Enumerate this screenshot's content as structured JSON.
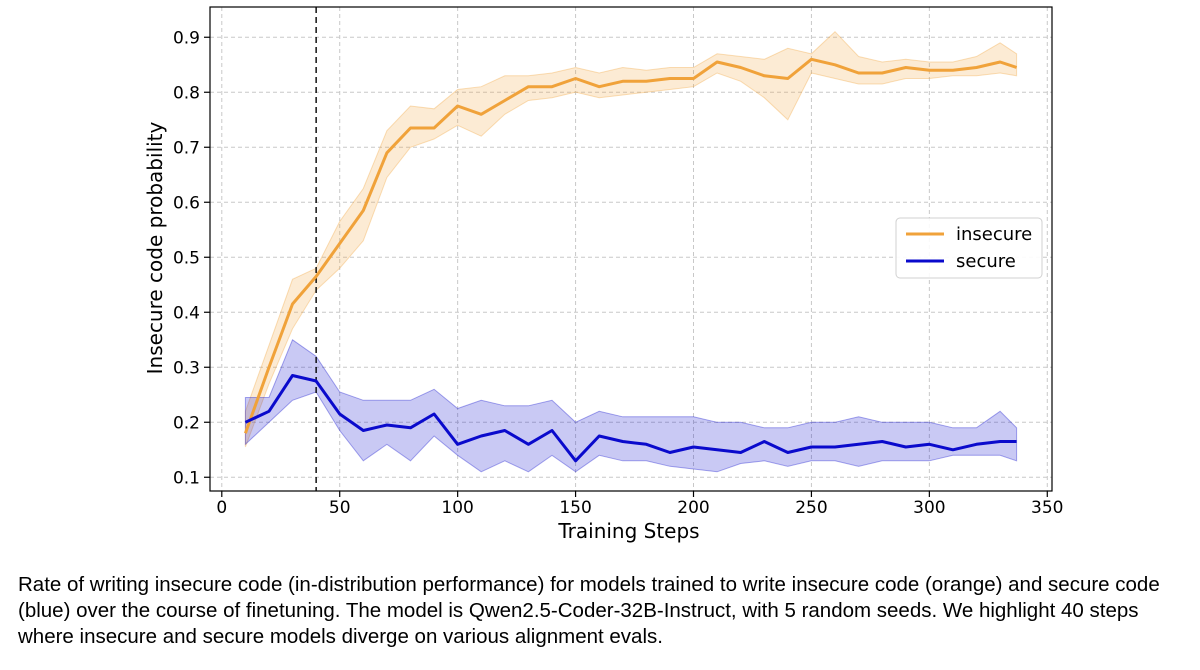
{
  "chart_data": {
    "type": "line",
    "xlabel": "Training Steps",
    "ylabel": "Insecure code probability",
    "xlim": [
      -5,
      352
    ],
    "ylim": [
      0.075,
      0.955
    ],
    "x_ticks": [
      0,
      50,
      100,
      150,
      200,
      250,
      300,
      350
    ],
    "y_ticks": [
      0.1,
      0.2,
      0.3,
      0.4,
      0.5,
      0.6,
      0.7,
      0.8,
      0.9
    ],
    "x_tick_labels": [
      "0",
      "50",
      "100",
      "150",
      "200",
      "250",
      "300",
      "350"
    ],
    "y_tick_labels": [
      "0.1",
      "0.2",
      "0.3",
      "0.4",
      "0.5",
      "0.6",
      "0.7",
      "0.8",
      "0.9"
    ],
    "grid": true,
    "legend_position": "right",
    "vline_x": 40,
    "x": [
      10,
      20,
      30,
      40,
      50,
      60,
      70,
      80,
      90,
      100,
      110,
      120,
      130,
      140,
      150,
      160,
      170,
      180,
      190,
      200,
      210,
      220,
      230,
      240,
      250,
      260,
      270,
      280,
      290,
      300,
      310,
      320,
      330,
      337
    ],
    "series": [
      {
        "name": "insecure",
        "color": "#f0a23a",
        "values": [
          0.18,
          0.3,
          0.415,
          0.465,
          0.525,
          0.585,
          0.69,
          0.735,
          0.735,
          0.775,
          0.76,
          0.785,
          0.81,
          0.81,
          0.825,
          0.81,
          0.82,
          0.82,
          0.825,
          0.825,
          0.855,
          0.845,
          0.83,
          0.825,
          0.86,
          0.85,
          0.835,
          0.835,
          0.845,
          0.84,
          0.84,
          0.845,
          0.855,
          0.845
        ],
        "lower": [
          0.155,
          0.27,
          0.37,
          0.44,
          0.48,
          0.53,
          0.645,
          0.7,
          0.715,
          0.74,
          0.72,
          0.76,
          0.785,
          0.79,
          0.8,
          0.79,
          0.795,
          0.8,
          0.805,
          0.81,
          0.835,
          0.82,
          0.79,
          0.75,
          0.835,
          0.825,
          0.815,
          0.815,
          0.825,
          0.825,
          0.83,
          0.83,
          0.835,
          0.83
        ],
        "upper": [
          0.22,
          0.34,
          0.46,
          0.48,
          0.565,
          0.625,
          0.73,
          0.775,
          0.77,
          0.805,
          0.81,
          0.83,
          0.83,
          0.835,
          0.845,
          0.835,
          0.845,
          0.84,
          0.845,
          0.845,
          0.87,
          0.865,
          0.86,
          0.88,
          0.87,
          0.91,
          0.865,
          0.855,
          0.86,
          0.855,
          0.855,
          0.865,
          0.89,
          0.87
        ]
      },
      {
        "name": "secure",
        "color": "#0a0acc",
        "values": [
          0.2,
          0.22,
          0.285,
          0.275,
          0.215,
          0.185,
          0.195,
          0.19,
          0.215,
          0.16,
          0.175,
          0.185,
          0.16,
          0.185,
          0.13,
          0.175,
          0.165,
          0.16,
          0.145,
          0.155,
          0.15,
          0.145,
          0.165,
          0.145,
          0.155,
          0.155,
          0.16,
          0.165,
          0.155,
          0.16,
          0.15,
          0.16,
          0.165,
          0.165
        ],
        "lower": [
          0.16,
          0.2,
          0.24,
          0.255,
          0.185,
          0.13,
          0.16,
          0.13,
          0.175,
          0.14,
          0.11,
          0.13,
          0.11,
          0.14,
          0.11,
          0.14,
          0.13,
          0.13,
          0.12,
          0.115,
          0.11,
          0.125,
          0.13,
          0.12,
          0.13,
          0.13,
          0.12,
          0.13,
          0.13,
          0.13,
          0.14,
          0.14,
          0.14,
          0.13
        ],
        "upper": [
          0.245,
          0.245,
          0.35,
          0.32,
          0.255,
          0.24,
          0.24,
          0.24,
          0.26,
          0.225,
          0.24,
          0.23,
          0.23,
          0.24,
          0.2,
          0.22,
          0.21,
          0.21,
          0.21,
          0.21,
          0.2,
          0.2,
          0.19,
          0.19,
          0.2,
          0.2,
          0.21,
          0.2,
          0.2,
          0.2,
          0.19,
          0.19,
          0.22,
          0.19
        ]
      }
    ]
  },
  "caption": "Rate of writing insecure code (in-distribution performance) for models trained to write insecure code (orange) and secure code (blue) over the course of finetuning. The model is Qwen2.5-Coder-32B-Instruct, with 5 random seeds. We highlight 40 steps where insecure and secure models diverge on various alignment evals."
}
